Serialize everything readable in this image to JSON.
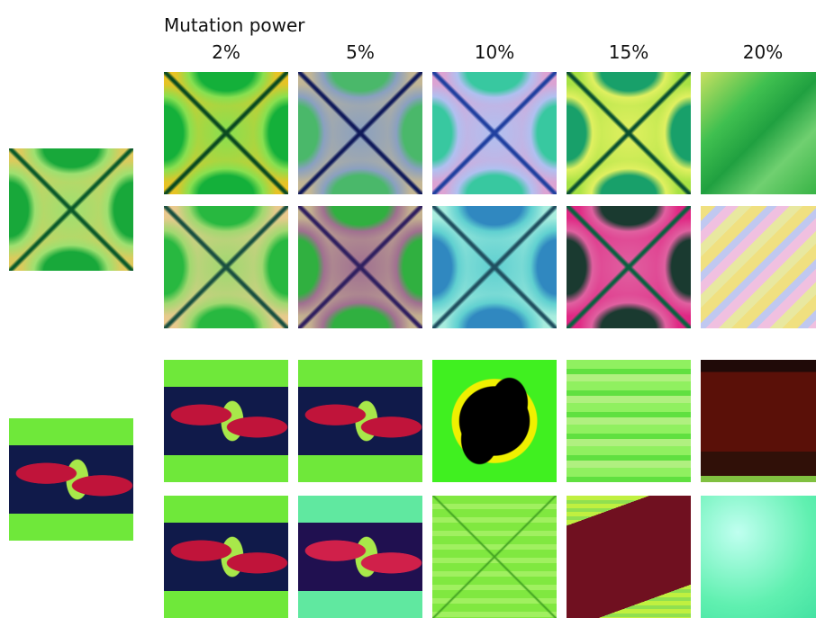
{
  "header": {
    "title": "Mutation power"
  },
  "columns": [
    "2%",
    "5%",
    "10%",
    "15%",
    "20%"
  ]
}
